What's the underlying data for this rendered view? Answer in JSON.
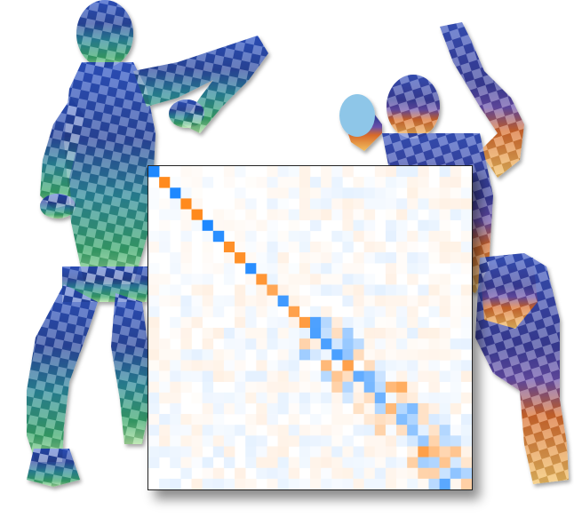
{
  "figure": {
    "left_figure": {
      "checker_colors": [
        "#2f4fa8",
        "#3f7fd6",
        "#7a6ad0",
        "#2a8aa0",
        "#3aa86a",
        "#9ad88a"
      ]
    },
    "right_figure": {
      "checker_colors": [
        "#2a3f9a",
        "#5a4fb8",
        "#7fb6e0",
        "#d8632a",
        "#e8a23a",
        "#f0d070"
      ]
    }
  },
  "chart_data": {
    "type": "heatmap",
    "size": 30,
    "colors": {
      "positive": "#1e88ff",
      "negative": "#ff8a1e",
      "background": "#ffffff"
    },
    "diagonal_signs": [
      1,
      -1,
      1,
      -1,
      -1,
      1,
      1,
      -1,
      -1,
      1,
      -1,
      -1,
      1,
      -1,
      -1,
      1,
      1,
      1,
      -1,
      1,
      1,
      1,
      -1,
      1,
      1,
      1,
      -1,
      -1,
      1,
      -1
    ],
    "diagonal_strength": [
      1,
      1,
      1,
      1,
      1,
      1,
      0.95,
      0.95,
      0.95,
      0.95,
      0.9,
      0.75,
      0.85,
      0.8,
      0.85,
      0.8,
      0.8,
      0.8,
      0.8,
      0.7,
      0.6,
      0.65,
      0.6,
      0.55,
      0.5,
      0.45,
      0.55,
      0.5,
      0.5,
      0.4
    ],
    "off_diagonal_noise": 0.12
  }
}
